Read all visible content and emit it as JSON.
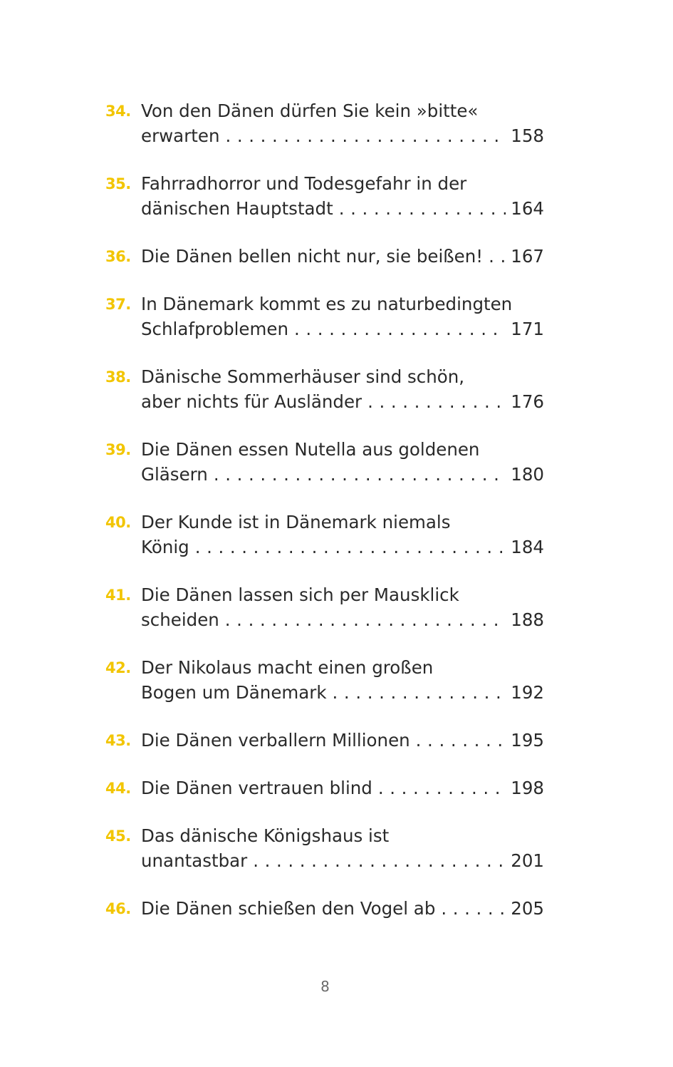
{
  "accent_color": "#F2C500",
  "entries": [
    {
      "num": "34.",
      "line1": "Von den Dänen dürfen Sie kein »bitte«",
      "last": "erwarten",
      "page": "158"
    },
    {
      "num": "35.",
      "line1": "Fahrradhorror und Todesgefahr in der",
      "last": "dänischen Hauptstadt",
      "page": "164"
    },
    {
      "num": "36.",
      "line1": "",
      "last": "Die Dänen bellen nicht nur, sie beißen!",
      "page": "167"
    },
    {
      "num": "37.",
      "line1": "In Dänemark kommt es zu naturbedingten",
      "last": "Schlafproblemen",
      "page": "171"
    },
    {
      "num": "38.",
      "line1": "Dänische Sommerhäuser sind schön,",
      "last": "aber nichts für Ausländer",
      "page": "176"
    },
    {
      "num": "39.",
      "line1": "Die Dänen essen Nutella aus goldenen",
      "last": "Gläsern",
      "page": "180"
    },
    {
      "num": "40.",
      "line1": "Der Kunde ist in Dänemark niemals",
      "last": "König",
      "page": "184"
    },
    {
      "num": "41.",
      "line1": "Die Dänen lassen sich per Mausklick",
      "last": "scheiden",
      "page": "188"
    },
    {
      "num": "42.",
      "line1": "Der Nikolaus macht einen großen",
      "last": "Bogen um Dänemark",
      "page": "192"
    },
    {
      "num": "43.",
      "line1": "",
      "last": "Die Dänen verballern Millionen",
      "page": "195"
    },
    {
      "num": "44.",
      "line1": "",
      "last": "Die Dänen vertrauen blind",
      "page": "198"
    },
    {
      "num": "45.",
      "line1": "Das dänische Königshaus ist",
      "last": "unantastbar",
      "page": "201"
    },
    {
      "num": "46.",
      "line1": "",
      "last": "Die Dänen schießen den Vogel ab",
      "page": "205"
    }
  ],
  "page_number": "8"
}
